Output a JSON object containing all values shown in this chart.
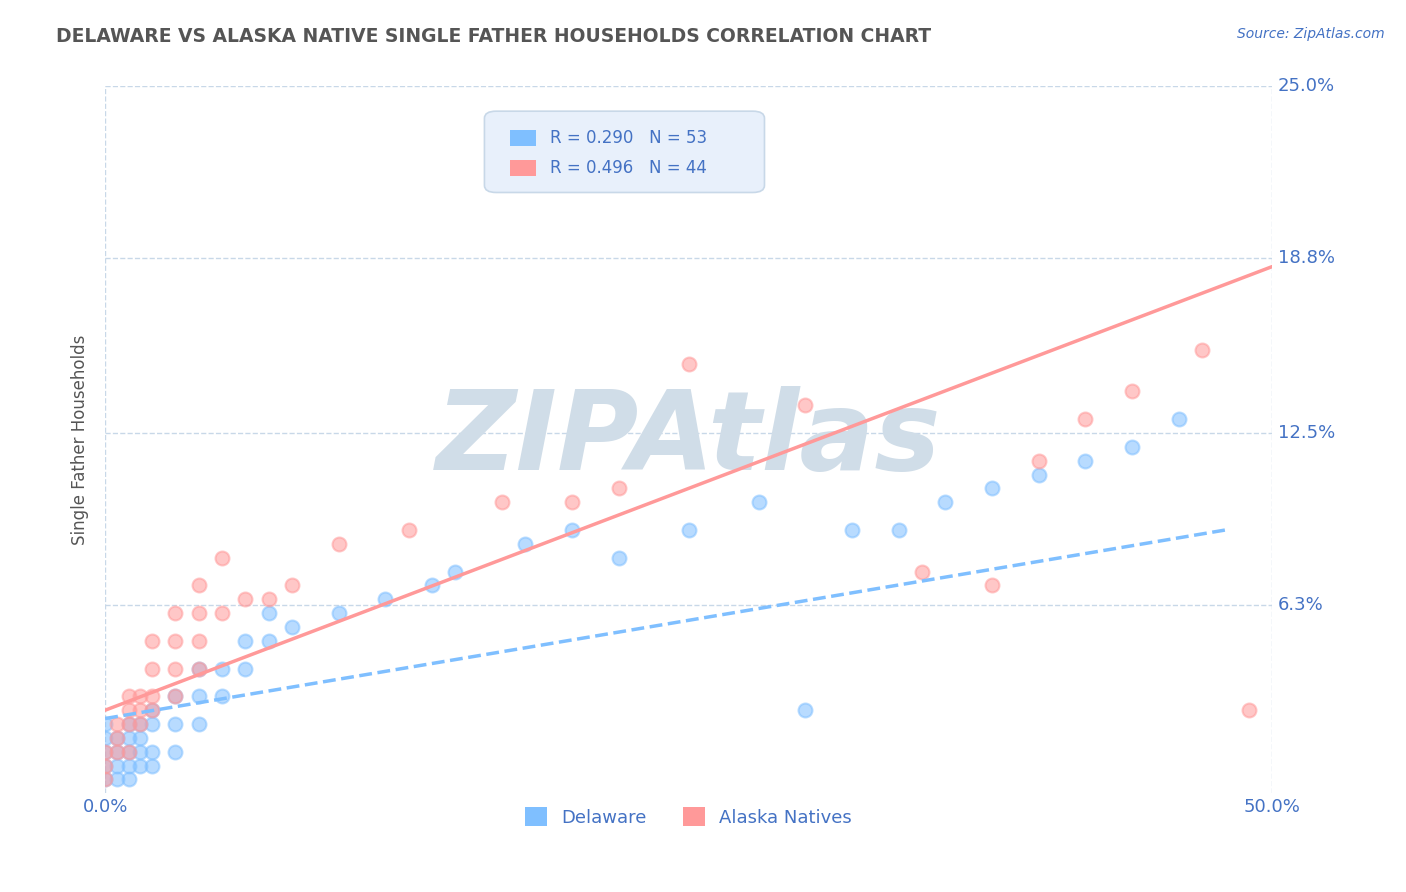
{
  "title": "DELAWARE VS ALASKA NATIVE SINGLE FATHER HOUSEHOLDS CORRELATION CHART",
  "source_text": "Source: ZipAtlas.com",
  "ylabel": "Single Father Households",
  "xlabel": "",
  "xlim": [
    0.0,
    0.5
  ],
  "ylim": [
    -0.005,
    0.25
  ],
  "ytick_labels": [
    "6.3%",
    "12.5%",
    "18.8%",
    "25.0%"
  ],
  "ytick_vals": [
    0.063,
    0.125,
    0.188,
    0.25
  ],
  "bg_color": "#ffffff",
  "grid_color": "#c8d8e8",
  "watermark": "ZIPAtlas",
  "watermark_color": "#d0dde8",
  "delaware_color": "#7fbfff",
  "alaska_color": "#ff9999",
  "delaware_R": 0.29,
  "delaware_N": 53,
  "alaska_R": 0.496,
  "alaska_N": 44,
  "legend_box_color": "#e8f0fb",
  "legend_text_color": "#4472c4",
  "axis_label_color": "#4472c4",
  "title_color": "#555555",
  "delaware_scatter": [
    [
      0.0,
      0.0
    ],
    [
      0.0,
      0.005
    ],
    [
      0.0,
      0.01
    ],
    [
      0.0,
      0.015
    ],
    [
      0.0,
      0.02
    ],
    [
      0.005,
      0.0
    ],
    [
      0.005,
      0.005
    ],
    [
      0.005,
      0.01
    ],
    [
      0.005,
      0.015
    ],
    [
      0.01,
      0.0
    ],
    [
      0.01,
      0.005
    ],
    [
      0.01,
      0.01
    ],
    [
      0.01,
      0.015
    ],
    [
      0.01,
      0.02
    ],
    [
      0.015,
      0.005
    ],
    [
      0.015,
      0.01
    ],
    [
      0.015,
      0.015
    ],
    [
      0.015,
      0.02
    ],
    [
      0.02,
      0.005
    ],
    [
      0.02,
      0.01
    ],
    [
      0.02,
      0.02
    ],
    [
      0.02,
      0.025
    ],
    [
      0.03,
      0.01
    ],
    [
      0.03,
      0.02
    ],
    [
      0.03,
      0.03
    ],
    [
      0.04,
      0.02
    ],
    [
      0.04,
      0.03
    ],
    [
      0.04,
      0.04
    ],
    [
      0.05,
      0.03
    ],
    [
      0.05,
      0.04
    ],
    [
      0.06,
      0.04
    ],
    [
      0.06,
      0.05
    ],
    [
      0.07,
      0.05
    ],
    [
      0.07,
      0.06
    ],
    [
      0.08,
      0.055
    ],
    [
      0.1,
      0.06
    ],
    [
      0.12,
      0.065
    ],
    [
      0.14,
      0.07
    ],
    [
      0.15,
      0.075
    ],
    [
      0.18,
      0.085
    ],
    [
      0.2,
      0.09
    ],
    [
      0.22,
      0.08
    ],
    [
      0.25,
      0.09
    ],
    [
      0.28,
      0.1
    ],
    [
      0.3,
      0.025
    ],
    [
      0.32,
      0.09
    ],
    [
      0.34,
      0.09
    ],
    [
      0.36,
      0.1
    ],
    [
      0.38,
      0.105
    ],
    [
      0.4,
      0.11
    ],
    [
      0.42,
      0.115
    ],
    [
      0.44,
      0.12
    ],
    [
      0.46,
      0.13
    ]
  ],
  "alaska_scatter": [
    [
      0.0,
      0.0
    ],
    [
      0.0,
      0.005
    ],
    [
      0.0,
      0.01
    ],
    [
      0.005,
      0.01
    ],
    [
      0.005,
      0.015
    ],
    [
      0.005,
      0.02
    ],
    [
      0.01,
      0.01
    ],
    [
      0.01,
      0.02
    ],
    [
      0.01,
      0.025
    ],
    [
      0.01,
      0.03
    ],
    [
      0.015,
      0.02
    ],
    [
      0.015,
      0.025
    ],
    [
      0.015,
      0.03
    ],
    [
      0.02,
      0.025
    ],
    [
      0.02,
      0.03
    ],
    [
      0.02,
      0.04
    ],
    [
      0.02,
      0.05
    ],
    [
      0.03,
      0.03
    ],
    [
      0.03,
      0.04
    ],
    [
      0.03,
      0.05
    ],
    [
      0.03,
      0.06
    ],
    [
      0.04,
      0.04
    ],
    [
      0.04,
      0.05
    ],
    [
      0.04,
      0.06
    ],
    [
      0.04,
      0.07
    ],
    [
      0.05,
      0.06
    ],
    [
      0.05,
      0.08
    ],
    [
      0.06,
      0.065
    ],
    [
      0.07,
      0.065
    ],
    [
      0.08,
      0.07
    ],
    [
      0.1,
      0.085
    ],
    [
      0.13,
      0.09
    ],
    [
      0.17,
      0.1
    ],
    [
      0.2,
      0.1
    ],
    [
      0.22,
      0.105
    ],
    [
      0.25,
      0.15
    ],
    [
      0.3,
      0.135
    ],
    [
      0.35,
      0.075
    ],
    [
      0.38,
      0.07
    ],
    [
      0.4,
      0.115
    ],
    [
      0.42,
      0.13
    ],
    [
      0.44,
      0.14
    ],
    [
      0.47,
      0.155
    ],
    [
      0.49,
      0.025
    ]
  ],
  "delaware_trendline": [
    [
      0.0,
      0.022
    ],
    [
      0.48,
      0.09
    ]
  ],
  "alaska_trendline": [
    [
      0.0,
      0.025
    ],
    [
      0.5,
      0.185
    ]
  ]
}
